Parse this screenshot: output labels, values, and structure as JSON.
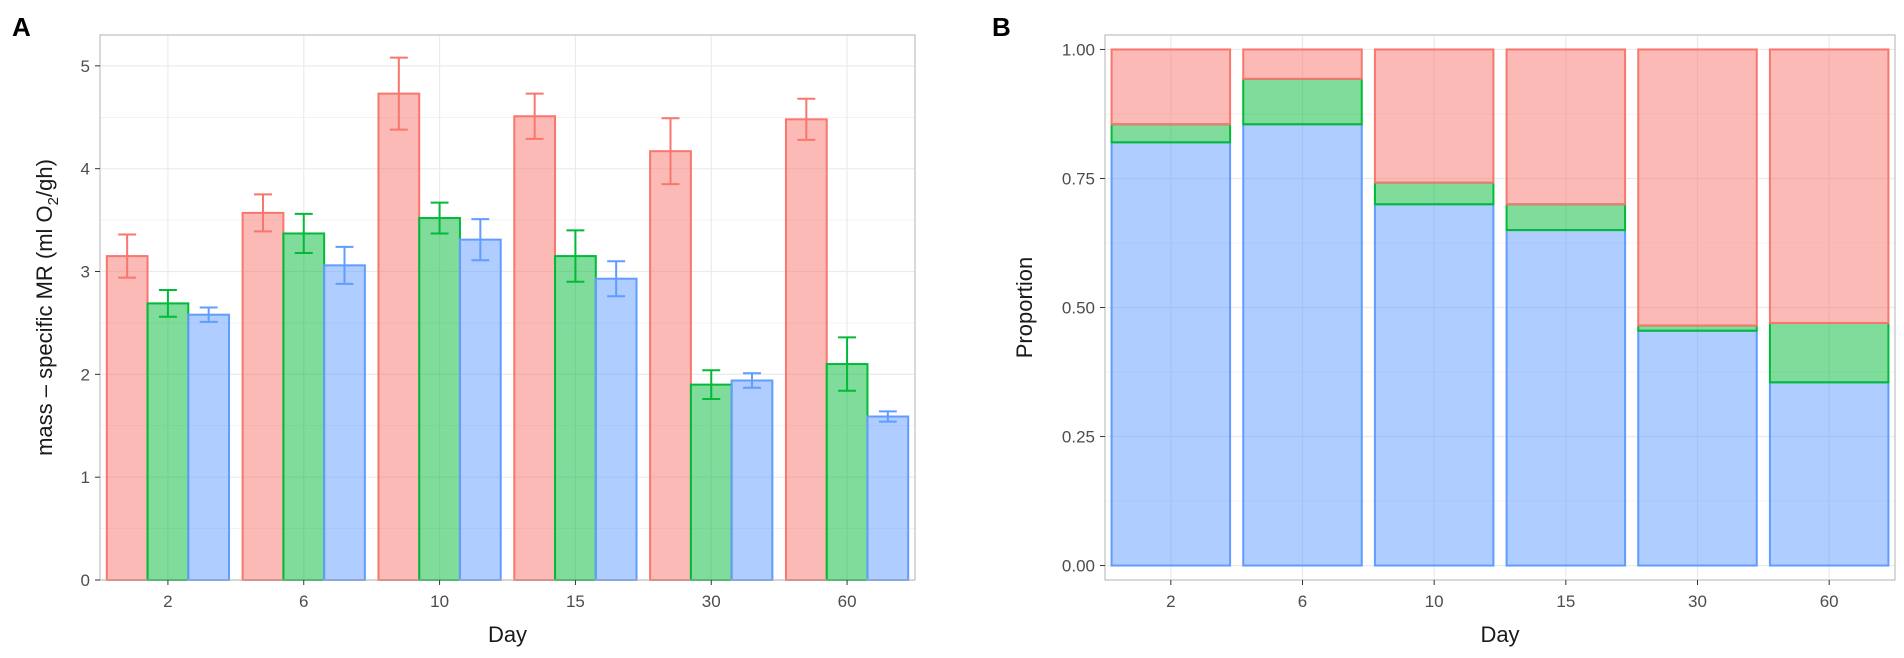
{
  "colors": {
    "red_fill": "#F8766D",
    "red_stroke": "#F8766D",
    "green_fill": "#00BA38",
    "green_stroke": "#00BA38",
    "blue_fill": "#619CFF",
    "blue_stroke": "#619CFF",
    "grid": "#ebebeb",
    "border": "#b3b3b3"
  },
  "chart_data": [
    {
      "panel": "A",
      "type": "bar",
      "title": "",
      "xlabel": "Day",
      "ylabel": "mass – specific MR (ml O2/gh)",
      "categories": [
        "2",
        "6",
        "10",
        "15",
        "30",
        "60"
      ],
      "ylim": [
        0,
        5.3
      ],
      "yticks": [
        "0",
        "1",
        "2",
        "3",
        "4",
        "5"
      ],
      "grid": true,
      "legend": "none",
      "series": [
        {
          "name": "red",
          "values": [
            3.15,
            3.57,
            4.73,
            4.51,
            4.17,
            4.48
          ],
          "errors": [
            0.21,
            0.18,
            0.35,
            0.22,
            0.32,
            0.2
          ]
        },
        {
          "name": "green",
          "values": [
            2.69,
            3.37,
            3.52,
            3.15,
            1.9,
            2.1
          ],
          "errors": [
            0.13,
            0.19,
            0.15,
            0.25,
            0.14,
            0.26
          ]
        },
        {
          "name": "blue",
          "values": [
            2.58,
            3.06,
            3.31,
            2.93,
            1.94,
            1.59
          ],
          "errors": [
            0.07,
            0.18,
            0.2,
            0.17,
            0.07,
            0.05
          ]
        }
      ]
    },
    {
      "panel": "B",
      "type": "bar",
      "stacked": true,
      "title": "",
      "xlabel": "Day",
      "ylabel": "Proportion",
      "categories": [
        "2",
        "6",
        "10",
        "15",
        "30",
        "60"
      ],
      "ylim": [
        0,
        1
      ],
      "yticks": [
        "0.00",
        "0.25",
        "0.50",
        "0.75",
        "1.00"
      ],
      "grid": true,
      "legend": "none",
      "series": [
        {
          "name": "blue",
          "values": [
            0.82,
            0.855,
            0.7,
            0.65,
            0.455,
            0.355
          ]
        },
        {
          "name": "green",
          "values": [
            0.035,
            0.088,
            0.042,
            0.05,
            0.01,
            0.115
          ]
        },
        {
          "name": "red",
          "values": [
            0.145,
            0.057,
            0.258,
            0.3,
            0.535,
            0.53
          ]
        }
      ]
    }
  ]
}
